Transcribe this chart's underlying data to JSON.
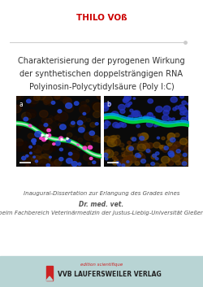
{
  "title_author": "THILO VOß",
  "title_author_color": "#cc0000",
  "title_author_fontsize": 7.5,
  "main_title_lines": [
    "Charakterisierung der pyrogenen Wirkung",
    "der synthetischen doppelsträngigen RNA",
    "Polyinosin-Polycytidylsäure (Poly I:C)"
  ],
  "main_title_color": "#333333",
  "main_title_fontsize": 7.0,
  "separator_color": "#cccccc",
  "dissertation_line1": "Inaugural-Dissertation zur Erlangung des Grades eines",
  "dissertation_line2": "Dr. med. vet.",
  "dissertation_line3": "beim Fachbereich Veterinärmedizin der Justus-Liebig-Universität Gießen",
  "dissertation_color": "#555555",
  "dissertation_fontsize": 5.0,
  "dissertation_bold_fontsize": 5.5,
  "footer_bg_color": "#b8d4d4",
  "footer_text": "VVB LAUFERSWEILER VERLAG",
  "footer_text_color": "#222222",
  "footer_fontsize": 5.5,
  "background_color": "#ffffff"
}
